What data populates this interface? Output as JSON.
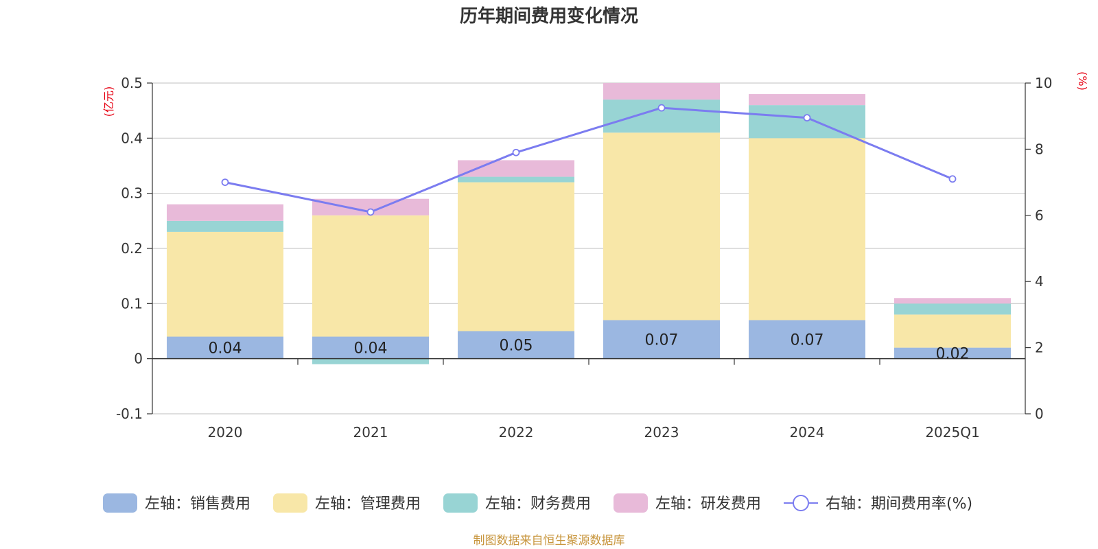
{
  "chart_data": {
    "type": "bar",
    "stacked": true,
    "title": "历年期间费用变化情况",
    "categories": [
      "2020",
      "2021",
      "2022",
      "2023",
      "2024",
      "2025Q1"
    ],
    "left_axis": {
      "unit": "(亿元)",
      "ylim": [
        -0.1,
        0.5
      ],
      "ticks": [
        -0.1,
        0,
        0.1,
        0.2,
        0.3,
        0.4,
        0.5
      ],
      "tick_labels": [
        "-0.1",
        "0",
        "0.1",
        "0.2",
        "0.3",
        "0.4",
        "0.5"
      ]
    },
    "right_axis": {
      "unit": "(%)",
      "ylim": [
        0,
        10
      ],
      "ticks": [
        0,
        2,
        4,
        6,
        8,
        10
      ],
      "tick_labels": [
        "0",
        "2",
        "4",
        "6",
        "8",
        "10"
      ]
    },
    "series": [
      {
        "name": "左轴：销售费用",
        "axis": "left",
        "type": "bar",
        "color": "#9bb7e1",
        "values": [
          0.04,
          0.04,
          0.05,
          0.07,
          0.07,
          0.02
        ],
        "data_labels": [
          "0.04",
          "0.04",
          "0.05",
          "0.07",
          "0.07",
          "0.02"
        ]
      },
      {
        "name": "左轴：管理费用",
        "axis": "left",
        "type": "bar",
        "color": "#f8e7a8",
        "values": [
          0.19,
          0.22,
          0.27,
          0.34,
          0.33,
          0.06
        ]
      },
      {
        "name": "左轴：财务费用",
        "axis": "left",
        "type": "bar",
        "color": "#98d4d4",
        "values": [
          0.02,
          -0.01,
          0.01,
          0.06,
          0.06,
          0.02
        ]
      },
      {
        "name": "左轴：研发费用",
        "axis": "left",
        "type": "bar",
        "color": "#e8bad9",
        "values": [
          0.03,
          0.03,
          0.03,
          0.03,
          0.02,
          0.01
        ]
      },
      {
        "name": "右轴：期间费用率(%)",
        "axis": "right",
        "type": "line",
        "color": "#7b7cf0",
        "values": [
          7.0,
          6.1,
          7.9,
          9.25,
          8.95,
          7.1
        ]
      }
    ],
    "grid": true,
    "legend_position": "bottom"
  },
  "source": "制图数据来自恒生聚源数据库"
}
